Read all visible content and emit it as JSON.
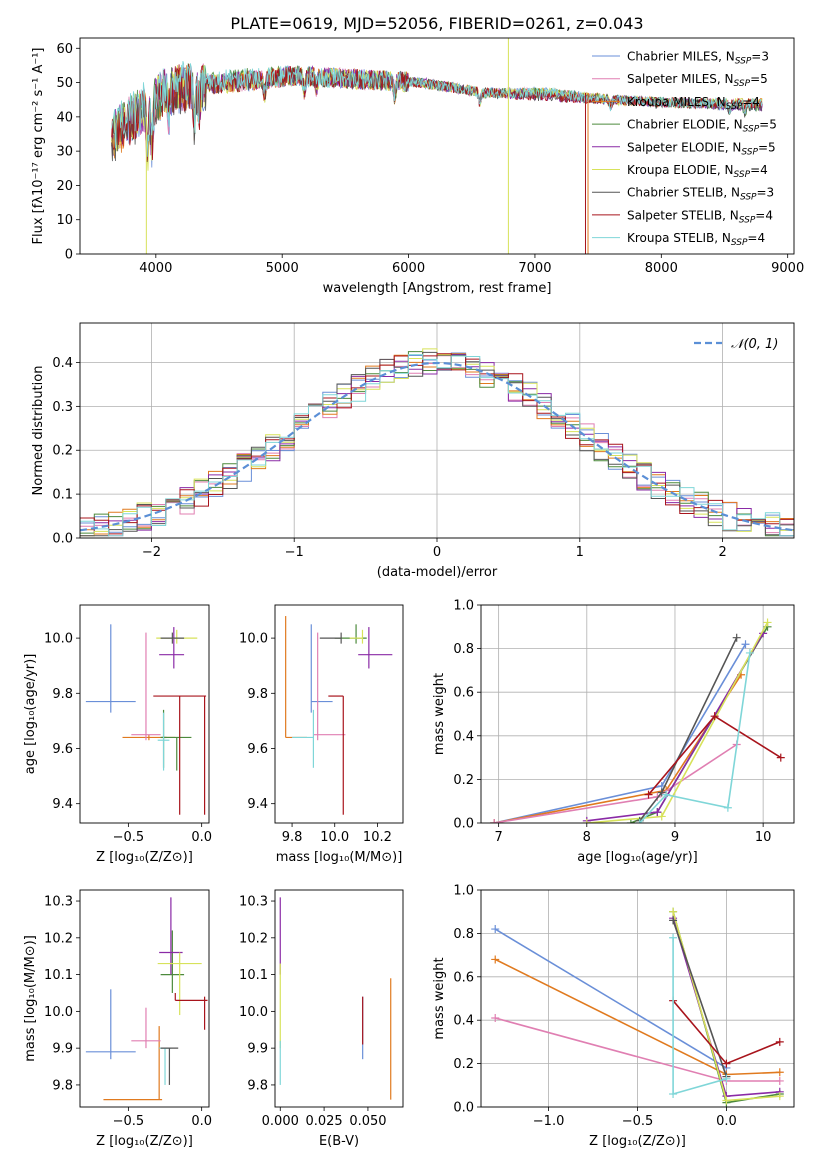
{
  "title": "PLATE=0619, MJD=52056, FIBERID=0261, z=0.043",
  "chart_data": [
    {
      "id": "spectrum",
      "type": "line",
      "xlabel": "wavelength [Angstrom, rest frame]",
      "ylabel": "Flux [fλ10⁻¹⁷ erg cm⁻² s⁻¹ A⁻¹]",
      "xlim": [
        3400,
        9050
      ],
      "ylim": [
        0,
        63
      ],
      "xticks": [
        "4000",
        "5000",
        "6000",
        "7000",
        "8000",
        "9000"
      ],
      "yticks": [
        "0",
        "10",
        "20",
        "30",
        "40",
        "50",
        "60"
      ],
      "legend_position": "upper-right",
      "series": [
        {
          "name": "Chabrier MILES, N_SSP=3",
          "label": "Chabrier MILES, N",
          "sub": "SSP",
          "tail": "=3",
          "color": "#6a8fd8",
          "y": [
            35,
            47,
            50,
            52,
            51,
            50,
            47,
            47,
            45,
            44,
            43
          ]
        },
        {
          "name": "Salpeter MILES, N_SSP=5",
          "label": "Salpeter MILES, N",
          "sub": "SSP",
          "tail": "=5",
          "color": "#e07fb2",
          "y": [
            35,
            48,
            50,
            52,
            51,
            50,
            47,
            47,
            45,
            44,
            44
          ]
        },
        {
          "name": "Kroupa MILES, N_SSP=4",
          "label": "Kroupa MILES, N",
          "sub": "SSP",
          "tail": "=4",
          "color": "#e07a1f",
          "y": [
            34,
            48,
            50,
            52,
            51,
            50,
            47,
            47,
            45,
            44,
            44
          ]
        },
        {
          "name": "Chabrier ELODIE, N_SSP=5",
          "label": "Chabrier ELODIE, N",
          "sub": "SSP",
          "tail": "=5",
          "color": "#4c8a3c",
          "y": [
            35,
            48,
            51,
            52,
            51,
            50,
            47,
            47,
            45,
            44,
            43
          ]
        },
        {
          "name": "Salpeter ELODIE, N_SSP=5",
          "label": "Salpeter ELODIE, N",
          "sub": "SSP",
          "tail": "=5",
          "color": "#8a2aa6",
          "y": [
            35,
            48,
            50,
            52,
            51,
            50,
            47,
            46,
            45,
            44,
            43
          ]
        },
        {
          "name": "Kroupa ELODIE, N_SSP=4",
          "label": "Kroupa ELODIE, N",
          "sub": "SSP",
          "tail": "=4",
          "color": "#d7e25a",
          "y": [
            35,
            48,
            50,
            52,
            51,
            50,
            47,
            47,
            45,
            44,
            44
          ]
        },
        {
          "name": "Chabrier STELIB, N_SSP=3",
          "label": "Chabrier STELIB, N",
          "sub": "SSP",
          "tail": "=3",
          "color": "#555555",
          "y": [
            33,
            47,
            50,
            52,
            51,
            50,
            47,
            46,
            45,
            44,
            43
          ]
        },
        {
          "name": "Salpeter STELIB, N_SSP=4",
          "label": "Salpeter STELIB, N",
          "sub": "SSP",
          "tail": "=4",
          "color": "#a8141c",
          "y": [
            34,
            48,
            50,
            52,
            51,
            50,
            47,
            46,
            45,
            44,
            44
          ]
        },
        {
          "name": "Kroupa STELIB, N_SSP=4",
          "label": "Kroupa STELIB, N",
          "sub": "SSP",
          "tail": "=4",
          "color": "#7fd6d8",
          "y": [
            36,
            49,
            51,
            52,
            51,
            50,
            47,
            47,
            45,
            44,
            44
          ]
        }
      ],
      "x": [
        3650,
        4100,
        4600,
        5100,
        5600,
        6100,
        6600,
        7100,
        7600,
        8200,
        8800
      ]
    },
    {
      "id": "residuals",
      "type": "step",
      "xlabel": "(data-model)/error",
      "ylabel": "Normed distribution",
      "xlim": [
        -2.5,
        2.5
      ],
      "ylim": [
        0,
        0.49
      ],
      "xticks": [
        "−2",
        "−1",
        "0",
        "1",
        "2"
      ],
      "yticks": [
        "0.0",
        "0.1",
        "0.2",
        "0.3",
        "0.4"
      ],
      "grid": true,
      "legend_position": "upper-right",
      "reference_curve": {
        "name": "𝒩(0, 1)",
        "color": "#5b8fd6",
        "style": "dashed"
      },
      "bin_width": 0.1
    },
    {
      "id": "age-vs-Z",
      "type": "errorbar",
      "xlabel": "Z [log₁₀(Z/Z⊙)]",
      "ylabel": "age  [log₁₀(age/yr)]",
      "xlim": [
        -0.83,
        0.05
      ],
      "ylim": [
        9.33,
        10.12
      ],
      "xticks": [
        "−0.5",
        "0.0"
      ],
      "yticks": [
        "9.4",
        "9.6",
        "9.8",
        "10.0"
      ],
      "points": [
        {
          "x": -0.62,
          "xerr": [
            0.17,
            0.17
          ],
          "y": 9.77,
          "yerr": [
            0.04,
            0.28
          ],
          "color": "#6a8fd8"
        },
        {
          "x": -0.36,
          "xerr": [
            0.18,
            0.18
          ],
          "y": 9.64,
          "yerr": [
            0.01,
            0.01
          ],
          "color": "#e07a1f"
        },
        {
          "x": -0.38,
          "xerr": [
            0.1,
            0.1
          ],
          "y": 9.65,
          "yerr": [
            0.02,
            0.37
          ],
          "color": "#e07fb2"
        },
        {
          "x": -0.26,
          "xerr": [
            0.02,
            0.02
          ],
          "y": 9.64,
          "yerr": [
            0.11,
            0.1
          ],
          "color": "#4c8a3c"
        },
        {
          "x": -0.17,
          "xerr": [
            0.1,
            0.1
          ],
          "y": 9.64,
          "yerr": [
            0.12,
            0.0
          ],
          "color": "#4c8a3c"
        },
        {
          "x": -0.26,
          "xerr": [
            0.04,
            0.04
          ],
          "y": 9.63,
          "yerr": [
            0.11,
            0.1
          ],
          "color": "#7fd6d8"
        },
        {
          "x": -0.19,
          "xerr": [
            0.1,
            0.07
          ],
          "y": 9.94,
          "yerr": [
            0.05,
            0.1
          ],
          "color": "#8a2aa6"
        },
        {
          "x": -0.17,
          "xerr": [
            0.14,
            0.14
          ],
          "y": 10.0,
          "yerr": [
            0.02,
            0.03
          ],
          "color": "#d7e25a"
        },
        {
          "x": -0.2,
          "xerr": [
            0.08,
            0.08
          ],
          "y": 10.0,
          "yerr": [
            0.02,
            0.02
          ],
          "color": "#555555"
        },
        {
          "x": -0.15,
          "xerr": [
            0.18,
            0.18
          ],
          "y": 9.79,
          "yerr": [
            0.43,
            0.0
          ],
          "color": "#a8141c"
        },
        {
          "x": 0.02,
          "xerr": [
            0.0,
            0.0
          ],
          "y": 9.79,
          "yerr": [
            0.43,
            0.0
          ],
          "color": "#a8141c"
        }
      ]
    },
    {
      "id": "age-vs-mass",
      "type": "errorbar",
      "xlabel": "mass [log₁₀(M/M⊙)]",
      "ylabel": "",
      "xlim": [
        9.72,
        10.32
      ],
      "ylim": [
        9.33,
        10.12
      ],
      "xticks": [
        "9.8",
        "10.0",
        "10.2"
      ],
      "yticks": [
        "9.4",
        "9.6",
        "9.8",
        "10.0"
      ],
      "points": [
        {
          "x": 9.89,
          "xerr": [
            0.0,
            0.1
          ],
          "y": 9.77,
          "yerr": [
            0.04,
            0.28
          ],
          "color": "#6a8fd8"
        },
        {
          "x": 9.77,
          "xerr": [
            0.0,
            0.1
          ],
          "y": 9.64,
          "yerr": [
            0.0,
            0.44
          ],
          "color": "#e07a1f"
        },
        {
          "x": 9.92,
          "xerr": [
            0.02,
            0.13
          ],
          "y": 9.65,
          "yerr": [
            0.02,
            0.37
          ],
          "color": "#e07fb2"
        },
        {
          "x": 9.9,
          "xerr": [
            0.1,
            0.0
          ],
          "y": 9.64,
          "yerr": [
            0.11,
            0.1
          ],
          "color": "#7fd6d8"
        },
        {
          "x": 10.1,
          "xerr": [
            0.1,
            0.05
          ],
          "y": 10.0,
          "yerr": [
            0.02,
            0.05
          ],
          "color": "#4c8a3c"
        },
        {
          "x": 10.16,
          "xerr": [
            0.05,
            0.11
          ],
          "y": 9.94,
          "yerr": [
            0.05,
            0.1
          ],
          "color": "#8a2aa6"
        },
        {
          "x": 10.13,
          "xerr": [
            0.06,
            0.0
          ],
          "y": 10.0,
          "yerr": [
            0.02,
            0.03
          ],
          "color": "#d7e25a"
        },
        {
          "x": 10.04,
          "xerr": [
            0.07,
            0.0
          ],
          "y": 9.79,
          "yerr": [
            0.43,
            0.0
          ],
          "color": "#a8141c"
        },
        {
          "x": 10.03,
          "xerr": [
            0.1,
            0.0
          ],
          "y": 10.0,
          "yerr": [
            0.02,
            0.02
          ],
          "color": "#555555"
        }
      ]
    },
    {
      "id": "weight-vs-age",
      "type": "line",
      "xlabel": "age  [log₁₀(age/yr)]",
      "ylabel": "mass weight",
      "xlim": [
        6.8,
        10.35
      ],
      "ylim": [
        0,
        1.0
      ],
      "xticks": [
        "7",
        "8",
        "9",
        "10"
      ],
      "yticks": [
        "0.0",
        "0.2",
        "0.4",
        "0.6",
        "0.8",
        "1.0"
      ],
      "grid": true,
      "series": [
        {
          "color": "#6a8fd8",
          "x": [
            6.95,
            8.85,
            9.8
          ],
          "y": [
            0.0,
            0.17,
            0.82
          ]
        },
        {
          "color": "#e07a1f",
          "x": [
            6.95,
            8.9,
            9.75
          ],
          "y": [
            0.0,
            0.15,
            0.68
          ]
        },
        {
          "color": "#e07fb2",
          "x": [
            6.95,
            8.8,
            9.7
          ],
          "y": [
            0.0,
            0.12,
            0.36
          ]
        },
        {
          "color": "#4c8a3c",
          "x": [
            8.5,
            8.8,
            10.05
          ],
          "y": [
            0.0,
            0.05,
            0.9
          ]
        },
        {
          "color": "#8a2aa6",
          "x": [
            8.0,
            8.8,
            10.0
          ],
          "y": [
            0.01,
            0.05,
            0.87
          ]
        },
        {
          "color": "#d7e25a",
          "x": [
            8.0,
            8.85,
            10.05
          ],
          "y": [
            0.0,
            0.03,
            0.92
          ]
        },
        {
          "color": "#555555",
          "x": [
            8.6,
            8.85,
            9.7
          ],
          "y": [
            0.01,
            0.14,
            0.85
          ]
        },
        {
          "color": "#a8141c",
          "x": [
            8.7,
            9.45,
            10.2
          ],
          "y": [
            0.13,
            0.49,
            0.3
          ]
        },
        {
          "color": "#7fd6d8",
          "x": [
            8.6,
            8.9,
            9.6,
            9.85
          ],
          "y": [
            0.0,
            0.13,
            0.07,
            0.78
          ]
        }
      ]
    },
    {
      "id": "mass-vs-Z",
      "type": "errorbar",
      "xlabel": "Z [log₁₀(Z/Z⊙)]",
      "ylabel": "mass [log₁₀(M/M⊙)]",
      "xlim": [
        -0.83,
        0.05
      ],
      "ylim": [
        9.74,
        10.33
      ],
      "xticks": [
        "−0.5",
        "0.0"
      ],
      "yticks": [
        "9.8",
        "9.9",
        "10.0",
        "10.1",
        "10.2",
        "10.3"
      ],
      "points": [
        {
          "x": -0.62,
          "xerr": [
            0.17,
            0.17
          ],
          "y": 9.89,
          "yerr": [
            0.02,
            0.17
          ],
          "color": "#6a8fd8"
        },
        {
          "x": -0.47,
          "xerr": [
            0.2,
            0.2
          ],
          "y": 9.76,
          "yerr": [
            0.0,
            0.0
          ],
          "color": "#e07a1f"
        },
        {
          "x": -0.29,
          "xerr": [
            0.0,
            0.0
          ],
          "y": 9.76,
          "yerr": [
            0.0,
            0.2
          ],
          "color": "#e07a1f"
        },
        {
          "x": -0.38,
          "xerr": [
            0.1,
            0.1
          ],
          "y": 9.92,
          "yerr": [
            0.02,
            0.09
          ],
          "color": "#e07fb2"
        },
        {
          "x": -0.25,
          "xerr": [
            0.04,
            0.04
          ],
          "y": 9.9,
          "yerr": [
            0.1,
            0.0
          ],
          "color": "#7fd6d8"
        },
        {
          "x": -0.22,
          "xerr": [
            0.06,
            0.06
          ],
          "y": 9.9,
          "yerr": [
            0.1,
            0.0
          ],
          "color": "#555555"
        },
        {
          "x": -0.2,
          "xerr": [
            0.08,
            0.08
          ],
          "y": 10.1,
          "yerr": [
            0.05,
            0.12
          ],
          "color": "#4c8a3c"
        },
        {
          "x": -0.21,
          "xerr": [
            0.08,
            0.08
          ],
          "y": 10.16,
          "yerr": [
            0.06,
            0.15
          ],
          "color": "#8a2aa6"
        },
        {
          "x": -0.15,
          "xerr": [
            0.15,
            0.15
          ],
          "y": 10.13,
          "yerr": [
            0.14,
            0.03
          ],
          "color": "#d7e25a"
        },
        {
          "x": -0.18,
          "xerr": [
            0.0,
            0.22
          ],
          "y": 10.03,
          "yerr": [
            0.0,
            0.02
          ],
          "color": "#a8141c"
        },
        {
          "x": 0.02,
          "xerr": [
            0.0,
            0.0
          ],
          "y": 10.03,
          "yerr": [
            0.08,
            0.01
          ],
          "color": "#a8141c"
        }
      ]
    },
    {
      "id": "mass-vs-ebv",
      "type": "errorbar",
      "xlabel": "E(B-V)",
      "ylabel": "",
      "xlim": [
        -0.003,
        0.07
      ],
      "ylim": [
        9.74,
        10.33
      ],
      "xticks": [
        "0.000",
        "0.025",
        "0.050"
      ],
      "yticks": [
        "9.8",
        "9.9",
        "10.0",
        "10.1",
        "10.2",
        "10.3"
      ],
      "points": [
        {
          "x": 0.0,
          "xerr": [
            0.0,
            0.0
          ],
          "y": 10.22,
          "yerr": [
            0.12,
            0.09
          ],
          "color": "#8a2aa6"
        },
        {
          "x": 0.0,
          "xerr": [
            0.0,
            0.0
          ],
          "y": 10.03,
          "yerr": [
            0.13,
            0.1
          ],
          "color": "#d7e25a"
        },
        {
          "x": 0.0,
          "xerr": [
            0.0,
            0.0
          ],
          "y": 9.85,
          "yerr": [
            0.05,
            0.07
          ],
          "color": "#7fd6d8"
        },
        {
          "x": 0.047,
          "xerr": [
            0.0,
            0.0
          ],
          "y": 9.95,
          "yerr": [
            0.08,
            0.09
          ],
          "color": "#6a8fd8"
        },
        {
          "x": 0.047,
          "xerr": [
            0.0,
            0.0
          ],
          "y": 9.98,
          "yerr": [
            0.07,
            0.06
          ],
          "color": "#a8141c"
        },
        {
          "x": 0.063,
          "xerr": [
            0.0,
            0.0
          ],
          "y": 9.95,
          "yerr": [
            0.19,
            0.14
          ],
          "color": "#e07a1f"
        }
      ]
    },
    {
      "id": "weight-vs-Z",
      "type": "line",
      "xlabel": "Z [log₁₀(Z/Z⊙)]",
      "ylabel": "mass weight",
      "xlim": [
        -1.38,
        0.38
      ],
      "ylim": [
        0,
        1.0
      ],
      "xticks": [
        "−1.0",
        "−0.5",
        "0.0"
      ],
      "yticks": [
        "0.0",
        "0.2",
        "0.4",
        "0.6",
        "0.8",
        "1.0"
      ],
      "grid": true,
      "series": [
        {
          "color": "#6a8fd8",
          "x": [
            -1.3,
            0.0
          ],
          "y": [
            0.82,
            0.18
          ]
        },
        {
          "color": "#e07a1f",
          "x": [
            -1.3,
            0.0,
            0.3
          ],
          "y": [
            0.68,
            0.15,
            0.16
          ]
        },
        {
          "color": "#e07fb2",
          "x": [
            -1.3,
            0.0,
            0.3
          ],
          "y": [
            0.41,
            0.12,
            0.12
          ]
        },
        {
          "color": "#4c8a3c",
          "x": [
            -0.3,
            0.0,
            0.3
          ],
          "y": [
            0.9,
            0.02,
            0.06
          ]
        },
        {
          "color": "#8a2aa6",
          "x": [
            -0.3,
            0.0,
            0.3
          ],
          "y": [
            0.87,
            0.05,
            0.07
          ]
        },
        {
          "color": "#d7e25a",
          "x": [
            -0.3,
            0.0,
            0.3
          ],
          "y": [
            0.9,
            0.03,
            0.05
          ]
        },
        {
          "color": "#555555",
          "x": [
            -0.3,
            0.0
          ],
          "y": [
            0.86,
            0.14
          ]
        },
        {
          "color": "#a8141c",
          "x": [
            -0.3,
            0.0,
            0.3
          ],
          "y": [
            0.49,
            0.2,
            0.3
          ]
        },
        {
          "color": "#7fd6d8",
          "x": [
            -0.3,
            -0.3,
            0.0
          ],
          "y": [
            0.78,
            0.06,
            0.13
          ]
        }
      ]
    }
  ]
}
